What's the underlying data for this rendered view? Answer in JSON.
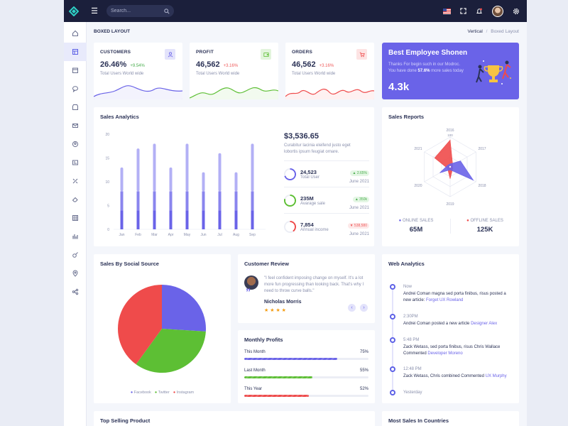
{
  "header": {
    "search_placeholder": "Search..."
  },
  "page": {
    "title": "BOXED LAYOUT",
    "breadcrumb_1": "Vertical",
    "breadcrumb_sep": "/",
    "breadcrumb_2": "Boxed Layout"
  },
  "stats": [
    {
      "label": "CUSTOMERS",
      "value": "26.46%",
      "change": "+9.54%",
      "change_color": "#4caf50",
      "sub": "Total Users World wide",
      "line_color": "#6a63e8"
    },
    {
      "label": "PROFIT",
      "value": "46,562",
      "change": "+3.16%",
      "change_color": "#ef5b5b",
      "sub": "Total Users World wide",
      "line_color": "#5dbf34"
    },
    {
      "label": "ORDERS",
      "value": "46,562",
      "change": "+3.16%",
      "change_color": "#ef5b5b",
      "sub": "Total Users World wide",
      "line_color": "#ef4b4b"
    }
  ],
  "employee": {
    "title": "Best Employee Shonen",
    "text_1": "Thanks For begin such in our Modroc.",
    "text_2_prefix": "You have done ",
    "text_2_bold": "57.6%",
    "text_2_suffix": " more sales today",
    "value": "4.3k"
  },
  "sales_analytics": {
    "title": "Sales Analytics",
    "amount": "$3,536.65",
    "desc_1": "Curabitur lacinia eleifend justo eget",
    "desc_2": "lobortis ipsum feugiat ornare.",
    "metrics": [
      {
        "value": "24,523",
        "label": "Total User",
        "badge": "2.65%",
        "badge_color": "#4caf50",
        "badge_bg": "#e4f6e4",
        "date": "June 2021",
        "ring": "#6a63e8",
        "pct": 70
      },
      {
        "value": "235M",
        "label": "Avarage sale",
        "badge": "350k",
        "badge_color": "#4caf50",
        "badge_bg": "#e4f6e4",
        "date": "June 2021",
        "ring": "#5dbf34",
        "pct": 80
      },
      {
        "value": "7,854",
        "label": "Annual income",
        "badge": "538,580",
        "badge_color": "#ef5b5b",
        "badge_bg": "#fde8e8",
        "date": "June 2021",
        "ring": "#ef4b4b",
        "pct": 40
      }
    ]
  },
  "chart_data": [
    {
      "type": "bar",
      "title": "Sales Analytics",
      "categories": [
        "Jan",
        "Feb",
        "Mar",
        "Apr",
        "May",
        "Jun",
        "Jul",
        "Aug",
        "Sep"
      ],
      "series": [
        {
          "name": "series 1",
          "values": [
            4,
            4,
            4,
            4,
            4,
            4,
            4,
            4,
            4
          ]
        },
        {
          "name": "series 2",
          "values": [
            4,
            4,
            4,
            4,
            4,
            4,
            4,
            4,
            4
          ]
        },
        {
          "name": "series 3",
          "values": [
            5,
            9,
            10,
            5,
            10,
            4,
            8,
            4,
            10
          ]
        }
      ],
      "yticks": [
        "0",
        "5",
        "10",
        "15",
        "20"
      ],
      "ylim": [
        0,
        20
      ]
    },
    {
      "type": "radar",
      "title": "Sales Reports",
      "axes": [
        "2016",
        "2017",
        "2018",
        "2019",
        "2020",
        "2021"
      ],
      "scale_label": "100",
      "series": [
        {
          "name": "Online Sales",
          "color": "#6a63e8",
          "values": [
            10,
            40,
            90,
            10,
            40,
            10
          ]
        },
        {
          "name": "Offline Sales",
          "color": "#ef4b4b",
          "values": [
            90,
            10,
            10,
            40,
            10,
            60
          ]
        }
      ]
    },
    {
      "type": "pie",
      "title": "Sales By Social Source",
      "labels": [
        "Facebook",
        "Twitter",
        "Instagram"
      ],
      "values": [
        26,
        34,
        40
      ],
      "colors": [
        "#6a63e8",
        "#5dbf34",
        "#ef4b4b"
      ]
    }
  ],
  "sales_reports": {
    "title": "Sales Reports",
    "online_label": "ONLINE SALES",
    "online_value": "65M",
    "offline_label": "OFFLINE SALES",
    "offline_value": "125K"
  },
  "social": {
    "title": "Sales By Social Source",
    "legend": [
      "Facebook",
      "Twitter",
      "Instagram"
    ]
  },
  "review": {
    "title": "Customer Review",
    "text_1": "\"I feel confident imposing change on myself. It's a lot",
    "text_2": "more fun progressing than looking back. That's why I",
    "text_3": "need to throw curve balls.\"",
    "name": "Nicholas Morris",
    "stars": "★ ★ ★ ★"
  },
  "profits": {
    "title": "Monthly Profits",
    "rows": [
      {
        "label": "This Month",
        "pct_label": "75%",
        "pct": 75,
        "color": "#6a63e8"
      },
      {
        "label": "Last Month",
        "pct_label": "55%",
        "pct": 55,
        "color": "#5dbf34"
      },
      {
        "label": "This Year",
        "pct_label": "52%",
        "pct": 52,
        "color": "#ef4b4b"
      }
    ]
  },
  "web_analytics": {
    "title": "Web Analytics",
    "items": [
      {
        "time": "Now",
        "text": "Andrei Coman magna sed porta finibus, risus posted a",
        "text_2_prefix": "new article: ",
        "link": "Forget UX Rowland"
      },
      {
        "time": "2:30PM",
        "text": "",
        "text_2_prefix": "Andrei Coman posted a new article ",
        "link": "Designer Alex"
      },
      {
        "time": "5:48 PM",
        "text": "Zack Wetass, sed porta finibus, risus Chris Wallace",
        "text_2_prefix": "Commented ",
        "link": "Developer Moreno"
      },
      {
        "time": "12:48 PM",
        "text": "",
        "text_2_prefix": "Zack Wetass, Chris combined Commented ",
        "link": "UX Murphy"
      },
      {
        "time": "Yesterday",
        "text": "",
        "text_2_prefix": "",
        "link": ""
      }
    ]
  },
  "bottom": {
    "left_title": "Top Selling Product",
    "right_title": "Most Sales In Countries"
  }
}
